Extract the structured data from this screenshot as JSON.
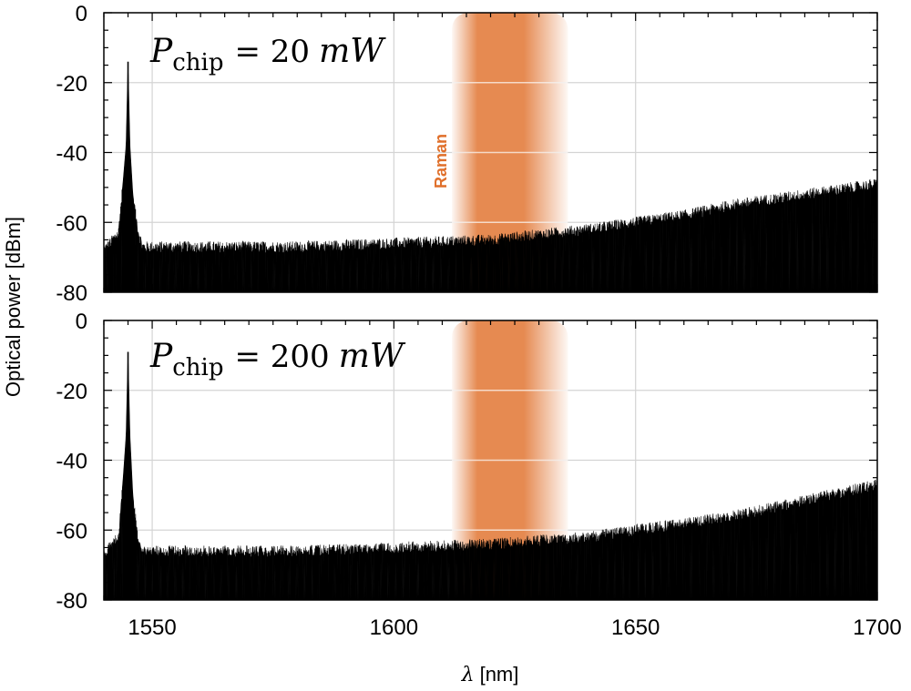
{
  "chart_data": [
    {
      "type": "line",
      "panel": "top",
      "annotation": {
        "symbol": "P",
        "subscript": "chip",
        "equals": "= 20",
        "unit": "mW"
      },
      "xlim": [
        1540,
        1700
      ],
      "ylim": [
        -80,
        0
      ],
      "xticks": [
        1550,
        1600,
        1650,
        1700
      ],
      "yticks": [
        0,
        -20,
        -40,
        -60,
        -80
      ],
      "grid": true,
      "series": [
        {
          "name": "spectrum",
          "peak": {
            "x": 1545,
            "y": -14
          },
          "floor": -80,
          "envelope_x": [
            1540,
            1543,
            1544,
            1544.6,
            1545,
            1545.4,
            1546,
            1547,
            1548,
            1550,
            1560,
            1580,
            1600,
            1620,
            1640,
            1650,
            1660,
            1670,
            1680,
            1690,
            1700
          ],
          "envelope_y": [
            -68,
            -63,
            -48,
            -38,
            -14,
            -38,
            -52,
            -62,
            -67,
            -67,
            -67,
            -67,
            -66,
            -65,
            -62,
            -60,
            -58,
            -55,
            -53,
            -51,
            -49
          ]
        }
      ],
      "highlight_band": {
        "label": "Raman",
        "x_start": 1612,
        "x_end": 1636,
        "color": "#e0702b"
      }
    },
    {
      "type": "line",
      "panel": "bottom",
      "annotation": {
        "symbol": "P",
        "subscript": "chip",
        "equals": "= 200",
        "unit": "mW"
      },
      "xlim": [
        1540,
        1700
      ],
      "ylim": [
        -80,
        0
      ],
      "xticks": [
        1550,
        1600,
        1650,
        1700
      ],
      "yticks": [
        0,
        -20,
        -40,
        -60,
        -80
      ],
      "grid": true,
      "series": [
        {
          "name": "spectrum",
          "peak": {
            "x": 1545,
            "y": -9
          },
          "floor": -80,
          "envelope_x": [
            1540,
            1543,
            1544,
            1544.6,
            1545,
            1545.4,
            1546,
            1547,
            1548,
            1550,
            1560,
            1580,
            1600,
            1620,
            1640,
            1650,
            1660,
            1670,
            1680,
            1690,
            1700
          ],
          "envelope_y": [
            -67,
            -62,
            -45,
            -33,
            -9,
            -33,
            -50,
            -62,
            -66,
            -66,
            -66,
            -66,
            -65,
            -64,
            -62,
            -60,
            -58,
            -56,
            -53,
            -50,
            -47
          ]
        }
      ],
      "highlight_band": {
        "x_start": 1612,
        "x_end": 1636,
        "color": "#e0702b"
      }
    }
  ],
  "axes": {
    "xlabel_symbol": "λ",
    "xlabel_unit": "[nm]",
    "ylabel": "Optical power [dBm]"
  }
}
